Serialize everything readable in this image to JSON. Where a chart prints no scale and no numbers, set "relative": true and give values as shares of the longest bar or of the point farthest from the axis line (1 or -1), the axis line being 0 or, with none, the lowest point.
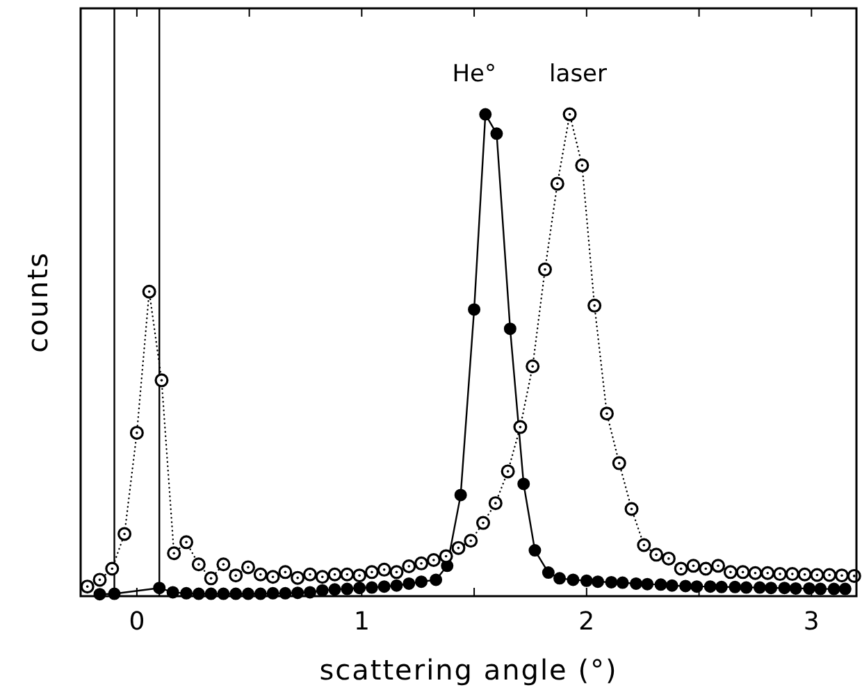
{
  "chart_data": {
    "type": "line",
    "relative": true,
    "xlabel": "scattering angle (°)",
    "ylabel": "counts",
    "xlim": [
      -0.25,
      3.2
    ],
    "xticks": [
      0,
      {
        "value": 0.5,
        "label": null
      },
      1,
      {
        "value": 1.5,
        "label": null
      },
      2,
      {
        "value": 2.5,
        "label": null
      },
      3
    ],
    "marker": "circle",
    "ref_lines": [
      {
        "axis": "x",
        "value": -0.1,
        "color": "#000000",
        "line_style": "solid"
      },
      {
        "axis": "x",
        "value": 0.1,
        "color": "#000000",
        "line_style": "solid"
      }
    ],
    "series": [
      {
        "name": "He°",
        "color": "#000000",
        "line_style": "solid",
        "x": [
          -0.165,
          -0.1,
          0.1,
          0.16,
          0.22,
          0.275,
          0.33,
          0.385,
          0.44,
          0.495,
          0.55,
          0.605,
          0.66,
          0.715,
          0.77,
          0.825,
          0.88,
          0.935,
          0.99,
          1.045,
          1.1,
          1.155,
          1.21,
          1.265,
          1.33,
          1.38,
          1.44,
          1.5,
          1.55,
          1.6,
          1.66,
          1.72,
          1.77,
          1.83,
          1.88,
          1.94,
          2.0,
          2.05,
          2.11,
          2.16,
          2.22,
          2.27,
          2.33,
          2.38,
          2.44,
          2.49,
          2.55,
          2.6,
          2.66,
          2.71,
          2.77,
          2.82,
          2.88,
          2.93,
          2.99,
          3.04,
          3.1,
          3.15
        ],
        "values": [
          0.004,
          0.005,
          0.017,
          0.008,
          0.006,
          0.005,
          0.005,
          0.005,
          0.005,
          0.005,
          0.005,
          0.006,
          0.006,
          0.007,
          0.008,
          0.012,
          0.014,
          0.015,
          0.017,
          0.018,
          0.02,
          0.022,
          0.026,
          0.03,
          0.034,
          0.063,
          0.21,
          0.595,
          1.0,
          0.96,
          0.555,
          0.233,
          0.095,
          0.049,
          0.037,
          0.034,
          0.032,
          0.03,
          0.029,
          0.028,
          0.026,
          0.025,
          0.024,
          0.022,
          0.021,
          0.02,
          0.02,
          0.019,
          0.019,
          0.018,
          0.018,
          0.017,
          0.017,
          0.016,
          0.016,
          0.015,
          0.015,
          0.015
        ]
      },
      {
        "name": "laser",
        "color": "#000000",
        "line_style": "dotted",
        "x": [
          -0.22,
          -0.165,
          -0.11,
          -0.055,
          0.0,
          0.055,
          0.11,
          0.165,
          0.22,
          0.275,
          0.33,
          0.385,
          0.44,
          0.495,
          0.55,
          0.605,
          0.66,
          0.715,
          0.77,
          0.825,
          0.88,
          0.935,
          0.99,
          1.045,
          1.1,
          1.155,
          1.21,
          1.265,
          1.32,
          1.375,
          1.43,
          1.485,
          1.54,
          1.595,
          1.65,
          1.705,
          1.76,
          1.815,
          1.87,
          1.925,
          1.98,
          2.035,
          2.09,
          2.145,
          2.2,
          2.255,
          2.31,
          2.365,
          2.42,
          2.475,
          2.53,
          2.585,
          2.64,
          2.695,
          2.75,
          2.805,
          2.86,
          2.915,
          2.97,
          3.025,
          3.08,
          3.135,
          3.19
        ],
        "values": [
          0.02,
          0.034,
          0.057,
          0.129,
          0.339,
          0.632,
          0.448,
          0.089,
          0.112,
          0.066,
          0.037,
          0.066,
          0.043,
          0.06,
          0.045,
          0.04,
          0.05,
          0.038,
          0.045,
          0.04,
          0.045,
          0.045,
          0.043,
          0.05,
          0.055,
          0.05,
          0.062,
          0.068,
          0.075,
          0.083,
          0.1,
          0.115,
          0.152,
          0.193,
          0.259,
          0.351,
          0.477,
          0.678,
          0.856,
          1.0,
          0.894,
          0.603,
          0.379,
          0.276,
          0.181,
          0.106,
          0.086,
          0.078,
          0.057,
          0.063,
          0.057,
          0.063,
          0.05,
          0.05,
          0.048,
          0.048,
          0.046,
          0.046,
          0.045,
          0.044,
          0.044,
          0.043,
          0.042
        ]
      }
    ]
  }
}
